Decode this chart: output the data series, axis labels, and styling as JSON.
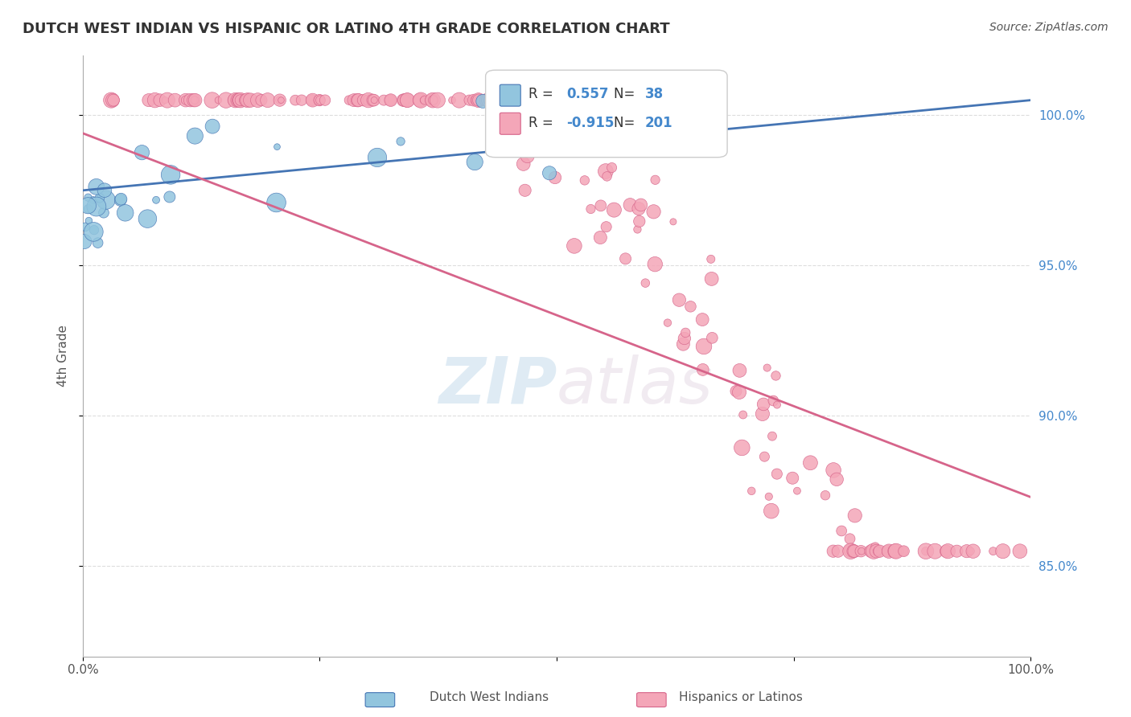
{
  "title": "DUTCH WEST INDIAN VS HISPANIC OR LATINO 4TH GRADE CORRELATION CHART",
  "source": "Source: ZipAtlas.com",
  "ylabel": "4th Grade",
  "blue_R": 0.557,
  "blue_N": 38,
  "pink_R": -0.915,
  "pink_N": 201,
  "blue_color": "#92C5DE",
  "pink_color": "#F4A6B8",
  "blue_line_color": "#4575B4",
  "pink_line_color": "#D6648A",
  "legend_label_blue": "Dutch West Indians",
  "legend_label_pink": "Hispanics or Latinos",
  "right_ytick_labels": [
    "85.0%",
    "90.0%",
    "95.0%",
    "100.0%"
  ],
  "right_ytick_vals": [
    0.85,
    0.9,
    0.95,
    1.0
  ],
  "watermark_zip": "ZIP",
  "watermark_atlas": "atlas",
  "xlim": [
    0.0,
    1.0
  ],
  "ylim": [
    0.82,
    1.02
  ],
  "blue_line_x": [
    0.0,
    1.0
  ],
  "blue_line_y": [
    0.975,
    1.005
  ],
  "pink_line_x": [
    0.0,
    1.0
  ],
  "pink_line_y": [
    0.994,
    0.873
  ],
  "grid_color": "#DDDDDD",
  "background_color": "#FFFFFF",
  "ytick_color": "#4488CC"
}
